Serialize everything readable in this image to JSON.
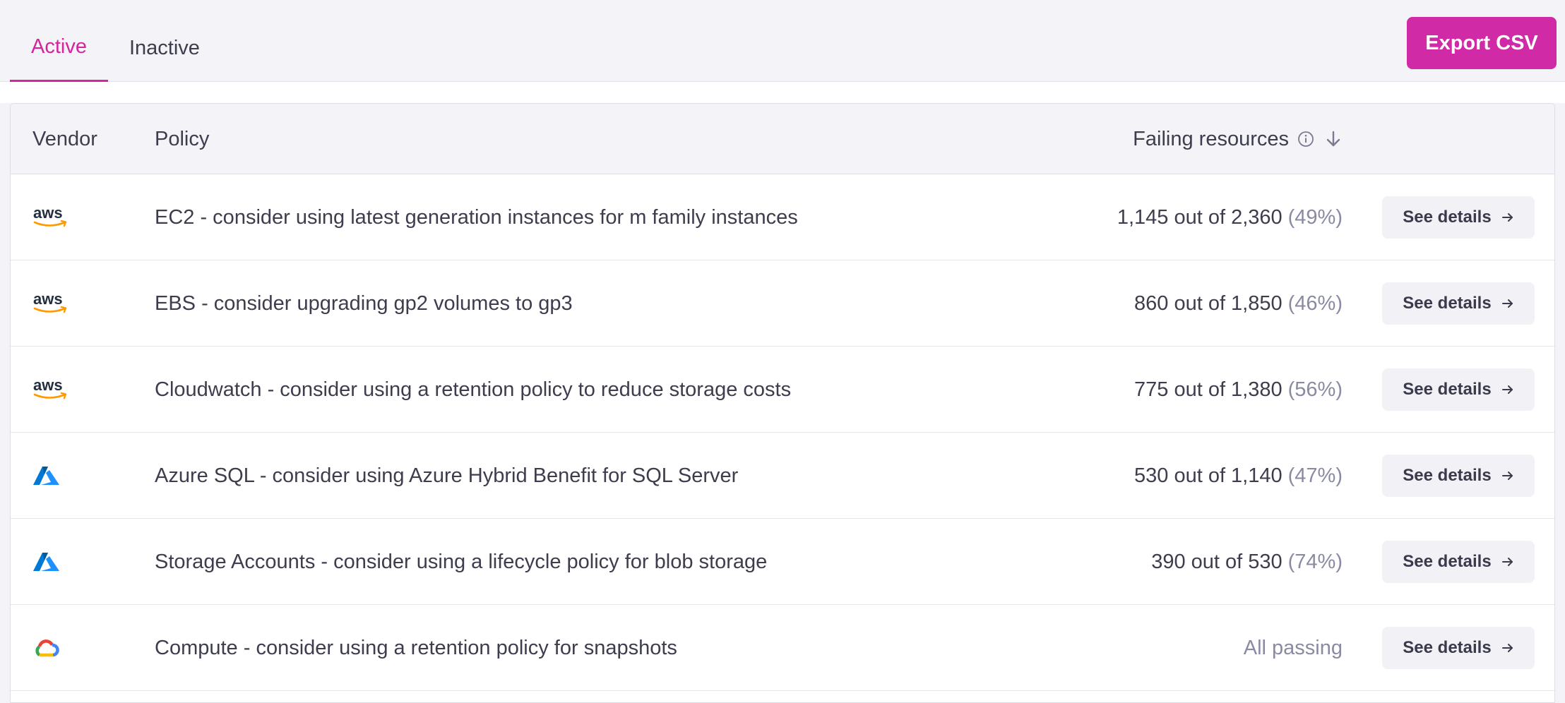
{
  "tabs": [
    {
      "label": "Active"
    },
    {
      "label": "Inactive"
    }
  ],
  "export_button": {
    "label": "Export CSV"
  },
  "table": {
    "headers": {
      "vendor": "Vendor",
      "policy": "Policy",
      "failing": "Failing resources"
    },
    "rows": [
      {
        "vendor": "aws",
        "vendor_icon": "aws-logo-icon",
        "policy": "EC2 - consider using latest generation instances for m family instances",
        "failing": "1,145 out of 2,360",
        "pct": "(49%)",
        "action": "See details"
      },
      {
        "vendor": "aws",
        "vendor_icon": "aws-logo-icon",
        "policy": "EBS - consider upgrading gp2 volumes to gp3",
        "failing": "860 out of 1,850",
        "pct": "(46%)",
        "action": "See details"
      },
      {
        "vendor": "aws",
        "vendor_icon": "aws-logo-icon",
        "policy": "Cloudwatch - consider using a retention policy to reduce storage costs",
        "failing": "775 out of 1,380",
        "pct": "(56%)",
        "action": "See details"
      },
      {
        "vendor": "azure",
        "vendor_icon": "azure-logo-icon",
        "policy": "Azure SQL - consider using Azure Hybrid Benefit for SQL Server",
        "failing": "530 out of 1,140",
        "pct": "(47%)",
        "action": "See details"
      },
      {
        "vendor": "azure",
        "vendor_icon": "azure-logo-icon",
        "policy": "Storage Accounts - consider using a lifecycle policy for blob storage",
        "failing": "390 out of 530",
        "pct": "(74%)",
        "action": "See details"
      },
      {
        "vendor": "gcp",
        "vendor_icon": "google-cloud-logo-icon",
        "policy": "Compute - consider using a retention policy for snapshots",
        "status": "All passing",
        "action": "See details"
      }
    ]
  },
  "colors": {
    "accent": "#d12aa6",
    "header_bg": "#f4f4f8",
    "muted_text": "#8a8aa2"
  }
}
